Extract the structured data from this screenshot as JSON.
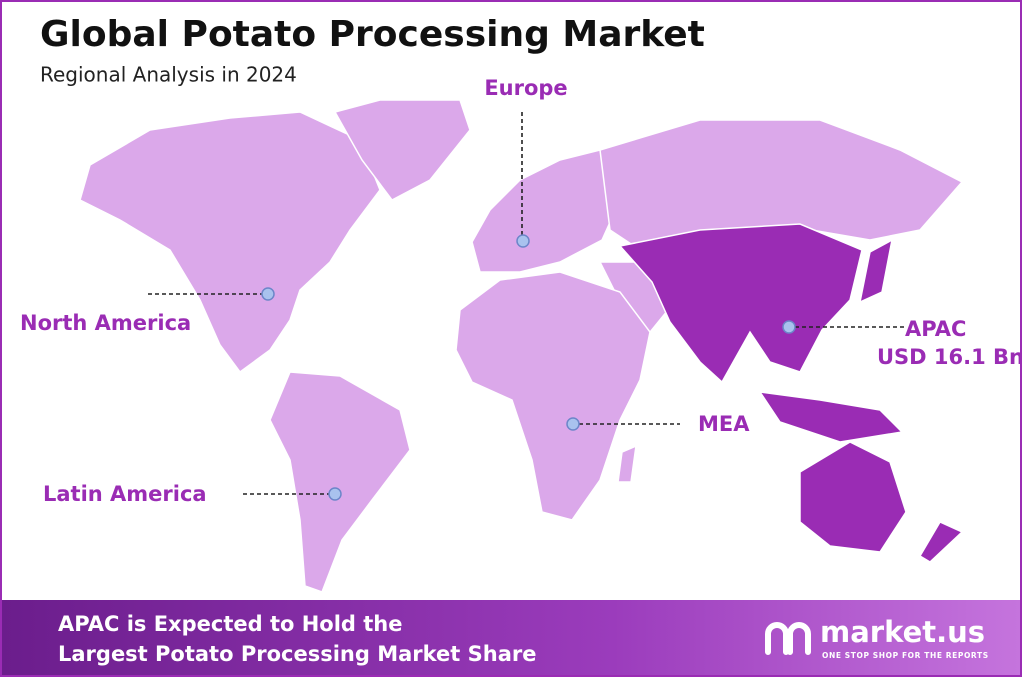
{
  "header": {
    "title": "Global Potato Processing Market",
    "subtitle": "Regional Analysis in 2024"
  },
  "regions": [
    {
      "label": "Europe"
    },
    {
      "label": "North America"
    },
    {
      "label": "APAC",
      "value": "USD 16.1 Bn"
    },
    {
      "label": "MEA"
    },
    {
      "label": "Latin America"
    }
  ],
  "footer": {
    "text_lines": [
      "APAC is Expected to Hold the",
      "Largest Potato Processing Market Share"
    ]
  },
  "logo": {
    "name": "market.us",
    "tagline": "ONE STOP SHOP FOR THE REPORTS"
  }
}
